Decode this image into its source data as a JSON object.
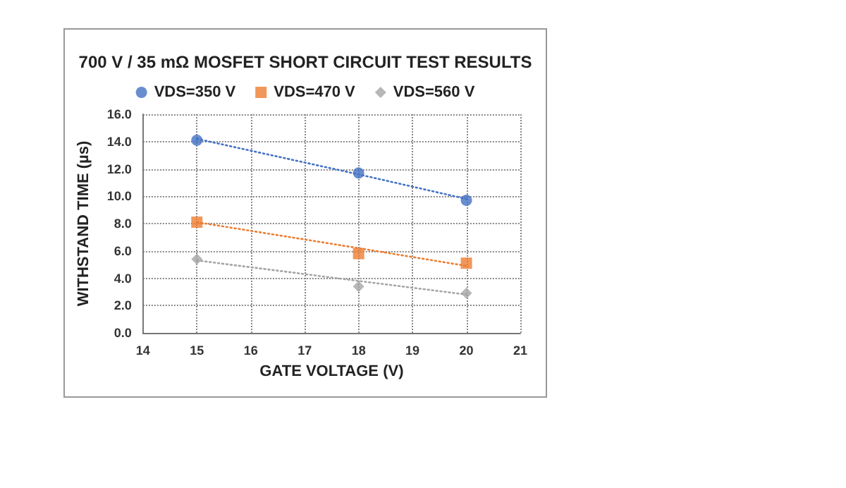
{
  "chart_data": {
    "type": "scatter",
    "title": "700 V / 35 mΩ MOSFET SHORT CIRCUIT TEST RESULTS",
    "xlabel": "GATE VOLTAGE (V)",
    "ylabel": "WITHSTAND TIME (µs)",
    "x": [
      15,
      18,
      20
    ],
    "series": [
      {
        "name": "VDS=350 V",
        "color": "#4472c4",
        "marker": "circle",
        "values": [
          14.1,
          11.7,
          9.7
        ]
      },
      {
        "name": "VDS=470 V",
        "color": "#ed7d31",
        "marker": "square",
        "values": [
          8.1,
          5.8,
          5.1
        ]
      },
      {
        "name": "VDS=560 V",
        "color": "#a5a5a5",
        "marker": "diamond",
        "values": [
          5.4,
          3.4,
          2.9
        ]
      },
      {
        "type": "line",
        "color": "#4472c4",
        "marker": "none",
        "line_style": "dotted",
        "values": [
          14.2,
          11.6,
          9.8
        ]
      },
      {
        "type": "line",
        "color": "#ed7d31",
        "marker": "none",
        "line_style": "dotted",
        "values": [
          8.1,
          6.2,
          4.9
        ]
      },
      {
        "type": "line",
        "color": "#a5a5a5",
        "marker": "none",
        "line_style": "dotted",
        "values": [
          5.3,
          3.8,
          2.8
        ]
      }
    ],
    "xlim": [
      14,
      21
    ],
    "xticks": [
      14,
      15,
      16,
      17,
      18,
      19,
      20,
      21
    ],
    "ylim": [
      0,
      16
    ],
    "yticks": [
      {
        "value": 0,
        "label": "0.0"
      },
      {
        "value": 2,
        "label": "2.0"
      },
      {
        "value": 4,
        "label": "4.0"
      },
      {
        "value": 6,
        "label": "6.0"
      },
      {
        "value": 8,
        "label": "8.0"
      },
      {
        "value": 10,
        "label": "10.0"
      },
      {
        "value": 12,
        "label": "12.0"
      },
      {
        "value": 14,
        "label": "14.0"
      },
      {
        "value": 16,
        "label": "16.0"
      }
    ],
    "grid": true,
    "legend": "top"
  }
}
